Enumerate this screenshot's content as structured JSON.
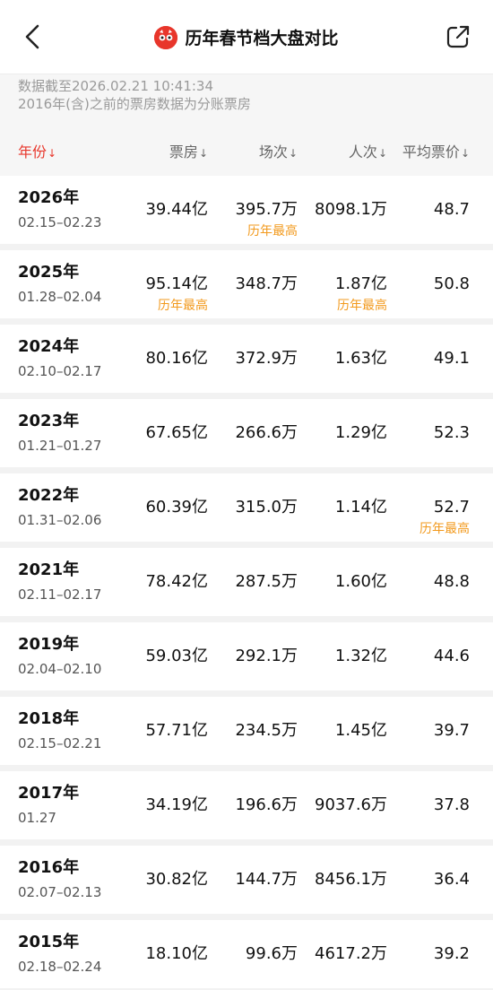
{
  "navbar": {
    "title": "历年春节档大盘对比",
    "back_icon": "chevron-left-icon",
    "share_icon": "share-icon",
    "logo_icon": "maoyan-logo-icon"
  },
  "notes": {
    "line1": "数据截至2026.02.21 10:41:34",
    "line2": "2016年(含)之前的票房数据为分账票房"
  },
  "table": {
    "headers": {
      "year": "年份",
      "box": "票房",
      "sessions": "场次",
      "audience": "人次",
      "avg": "平均票价"
    },
    "sort_arrow": "↓",
    "rows": [
      {
        "year": "2026年",
        "dates": "02.15–02.23",
        "box": "39.44亿",
        "sessions": "395.7万",
        "audience": "8098.1万",
        "avg": "48.7",
        "box_badge": "",
        "sess_badge": "历年最高",
        "aud_badge": "",
        "avg_badge": ""
      },
      {
        "year": "2025年",
        "dates": "01.28–02.04",
        "box": "95.14亿",
        "sessions": "348.7万",
        "audience": "1.87亿",
        "avg": "50.8",
        "box_badge": "历年最高",
        "sess_badge": "",
        "aud_badge": "历年最高",
        "avg_badge": ""
      },
      {
        "year": "2024年",
        "dates": "02.10–02.17",
        "box": "80.16亿",
        "sessions": "372.9万",
        "audience": "1.63亿",
        "avg": "49.1",
        "box_badge": "",
        "sess_badge": "",
        "aud_badge": "",
        "avg_badge": ""
      },
      {
        "year": "2023年",
        "dates": "01.21–01.27",
        "box": "67.65亿",
        "sessions": "266.6万",
        "audience": "1.29亿",
        "avg": "52.3",
        "box_badge": "",
        "sess_badge": "",
        "aud_badge": "",
        "avg_badge": ""
      },
      {
        "year": "2022年",
        "dates": "01.31–02.06",
        "box": "60.39亿",
        "sessions": "315.0万",
        "audience": "1.14亿",
        "avg": "52.7",
        "box_badge": "",
        "sess_badge": "",
        "aud_badge": "",
        "avg_badge": "历年最高"
      },
      {
        "year": "2021年",
        "dates": "02.11–02.17",
        "box": "78.42亿",
        "sessions": "287.5万",
        "audience": "1.60亿",
        "avg": "48.8",
        "box_badge": "",
        "sess_badge": "",
        "aud_badge": "",
        "avg_badge": ""
      },
      {
        "year": "2019年",
        "dates": "02.04–02.10",
        "box": "59.03亿",
        "sessions": "292.1万",
        "audience": "1.32亿",
        "avg": "44.6",
        "box_badge": "",
        "sess_badge": "",
        "aud_badge": "",
        "avg_badge": ""
      },
      {
        "year": "2018年",
        "dates": "02.15–02.21",
        "box": "57.71亿",
        "sessions": "234.5万",
        "audience": "1.45亿",
        "avg": "39.7",
        "box_badge": "",
        "sess_badge": "",
        "aud_badge": "",
        "avg_badge": ""
      },
      {
        "year": "2017年",
        "dates": "01.27",
        "box": "34.19亿",
        "sessions": "196.6万",
        "audience": "9037.6万",
        "avg": "37.8",
        "box_badge": "",
        "sess_badge": "",
        "aud_badge": "",
        "avg_badge": ""
      },
      {
        "year": "2016年",
        "dates": "02.07–02.13",
        "box": "30.82亿",
        "sessions": "144.7万",
        "audience": "8456.1万",
        "avg": "36.4",
        "box_badge": "",
        "sess_badge": "",
        "aud_badge": "",
        "avg_badge": ""
      },
      {
        "year": "2015年",
        "dates": "02.18–02.24",
        "box": "18.10亿",
        "sessions": "99.6万",
        "audience": "4617.2万",
        "avg": "39.2",
        "box_badge": "",
        "sess_badge": "",
        "aud_badge": "",
        "avg_badge": ""
      }
    ]
  },
  "colors": {
    "accent": "#e8362b",
    "badge": "#f29a1e"
  }
}
